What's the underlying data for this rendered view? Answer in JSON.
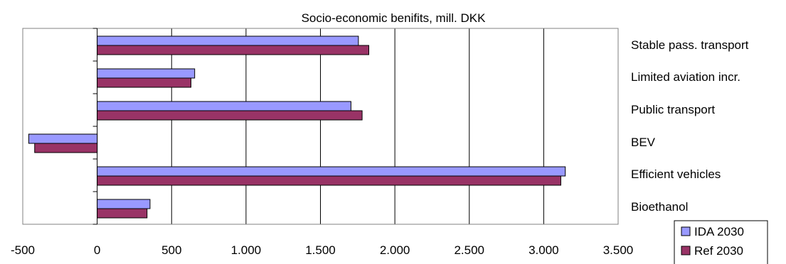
{
  "chart_data": {
    "type": "bar",
    "orientation": "horizontal",
    "title": "Socio-economic benifits, mill. DKK",
    "categories": [
      "Stable pass. transport",
      "Limited aviation incr.",
      "Public transport",
      "BEV",
      "Efficient vehicles",
      "Bioethanol"
    ],
    "series": [
      {
        "name": "IDA 2030",
        "color": "#9999ff",
        "values": [
          1755,
          655,
          1705,
          -460,
          3145,
          355
        ]
      },
      {
        "name": "Ref 2030",
        "color": "#993366",
        "values": [
          1825,
          630,
          1780,
          -420,
          3115,
          335
        ]
      }
    ],
    "xlim": [
      -500,
      3500
    ],
    "xticks": [
      -500,
      0,
      500,
      1000,
      1500,
      2000,
      2500,
      3000,
      3500
    ],
    "xtick_labels": [
      "-500",
      "0",
      "500",
      "1.000",
      "1.500",
      "2.000",
      "2.500",
      "3.000",
      "3.500"
    ],
    "grid": "vertical",
    "legend_position": "bottom-right"
  }
}
